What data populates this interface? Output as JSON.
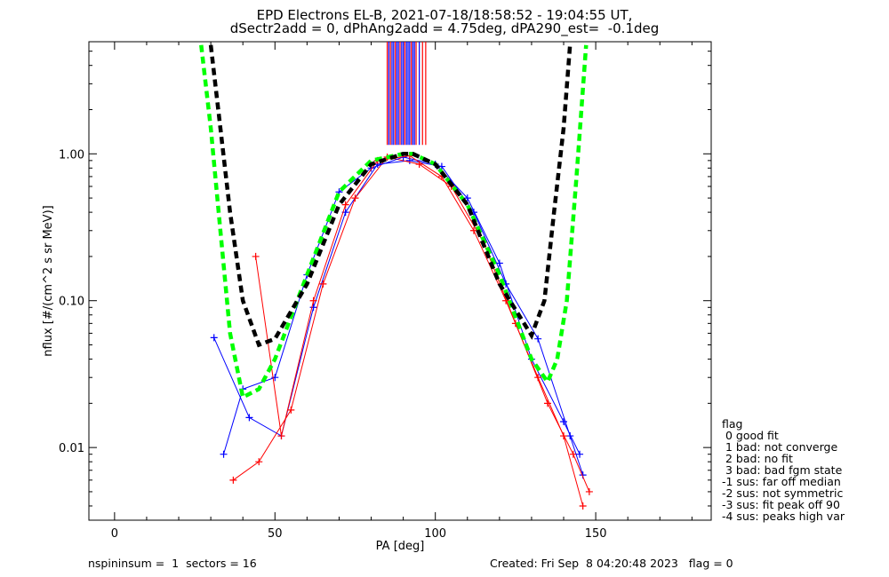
{
  "title_line1": "EPD Electrons EL-B, 2021-07-18/18:58:52 - 19:04:55 UT,",
  "title_line2": "dSectr2add = 0, dPhAng2add = 4.75deg, dPA290_est=  -0.1deg",
  "footer": {
    "left": "nspininsum =  1  sectors = 16",
    "right": "Created: Fri Sep  8 04:20:48 2023   flag = 0"
  },
  "legend": {
    "title": "flag",
    "items": [
      " 0 good fit",
      " 1 bad: not converge",
      " 2 bad: no fit",
      " 3 bad: bad fgm state",
      "-1 sus: far off median",
      "-2 sus: not symmetric",
      "-3 sus: fit peak off 90",
      "-4 sus: peaks high var"
    ]
  },
  "colors": {
    "red": "#ff0000",
    "blue": "#0000ff",
    "green_fit": "#00ff00",
    "black_fit": "#000000"
  },
  "chart_data": {
    "type": "line",
    "xlabel": "PA [deg]",
    "ylabel": "nflux [#/(cm^2 s sr MeV)]",
    "xlim": [
      -8,
      186
    ],
    "ylim": [
      0.0032,
      5.8
    ],
    "yscale": "log",
    "x_ticks": [
      0,
      50,
      100,
      150
    ],
    "x_tick_labels": [
      "0",
      "50",
      "100",
      "150"
    ],
    "y_ticks": [
      0.01,
      0.1,
      1.0
    ],
    "y_tick_labels": [
      "0.01",
      "0.10",
      "1.00"
    ],
    "series": [
      {
        "color": "blue",
        "marker": "+",
        "x": [
          31,
          42,
          52,
          62,
          72,
          82,
          92,
          102,
          112,
          122,
          132,
          142,
          146
        ],
        "y": [
          0.056,
          0.016,
          0.012,
          0.09,
          0.4,
          0.85,
          0.9,
          0.82,
          0.4,
          0.13,
          0.055,
          0.012,
          0.0065
        ]
      },
      {
        "color": "red",
        "marker": "+",
        "x": [
          37,
          45,
          55,
          65,
          75,
          85,
          95,
          105,
          115,
          125,
          135,
          143,
          148
        ],
        "y": [
          0.006,
          0.008,
          0.018,
          0.13,
          0.5,
          0.95,
          0.85,
          0.6,
          0.25,
          0.07,
          0.02,
          0.009,
          0.005
        ]
      },
      {
        "color": "blue",
        "marker": "+",
        "x": [
          34,
          40,
          50,
          60,
          70,
          80,
          90,
          100,
          110,
          120,
          130,
          140,
          145
        ],
        "y": [
          0.009,
          0.025,
          0.03,
          0.15,
          0.55,
          0.8,
          0.95,
          0.85,
          0.5,
          0.18,
          0.04,
          0.015,
          0.009
        ]
      },
      {
        "color": "red",
        "marker": "+",
        "x": [
          44,
          52,
          62,
          72,
          82,
          92,
          102,
          112,
          122,
          132,
          140,
          146
        ],
        "y": [
          0.2,
          0.012,
          0.1,
          0.45,
          0.9,
          0.97,
          0.7,
          0.3,
          0.1,
          0.03,
          0.012,
          0.004
        ]
      }
    ],
    "fits": [
      {
        "color": "green_fit",
        "style": "dashed",
        "x": [
          27,
          30,
          33,
          36,
          40,
          45,
          50,
          60,
          70,
          80,
          90,
          93,
          100,
          110,
          120,
          130,
          135,
          138,
          141,
          144,
          147
        ],
        "y": [
          5.5,
          1.5,
          0.3,
          0.06,
          0.022,
          0.025,
          0.04,
          0.15,
          0.55,
          0.9,
          1.0,
          1.0,
          0.85,
          0.45,
          0.15,
          0.04,
          0.028,
          0.04,
          0.1,
          0.7,
          5.5
        ]
      },
      {
        "color": "black_fit",
        "style": "dashed",
        "x": [
          30,
          33,
          36,
          40,
          45,
          50,
          60,
          70,
          80,
          90,
          93,
          100,
          110,
          120,
          130,
          134,
          137,
          140,
          142
        ],
        "y": [
          5.5,
          1.5,
          0.4,
          0.1,
          0.05,
          0.055,
          0.13,
          0.45,
          0.85,
          1.0,
          1.0,
          0.85,
          0.45,
          0.13,
          0.058,
          0.1,
          0.4,
          1.5,
          5.5
        ]
      }
    ],
    "peak_markers": {
      "x": [
        85,
        85.5,
        86,
        86.5,
        87,
        87.5,
        88,
        88.5,
        89,
        89.5,
        90,
        90.5,
        91,
        91.5,
        92,
        92.5,
        93,
        93.5,
        94,
        95,
        96,
        97
      ],
      "colors": [
        "red",
        "blue",
        "red",
        "blue",
        "blue",
        "red",
        "blue",
        "blue",
        "red",
        "blue",
        "blue",
        "red",
        "blue",
        "blue",
        "blue",
        "red",
        "blue",
        "blue",
        "red",
        "blue",
        "red",
        "red"
      ],
      "y_top": 5.8,
      "y_bottom": 1.15
    }
  }
}
